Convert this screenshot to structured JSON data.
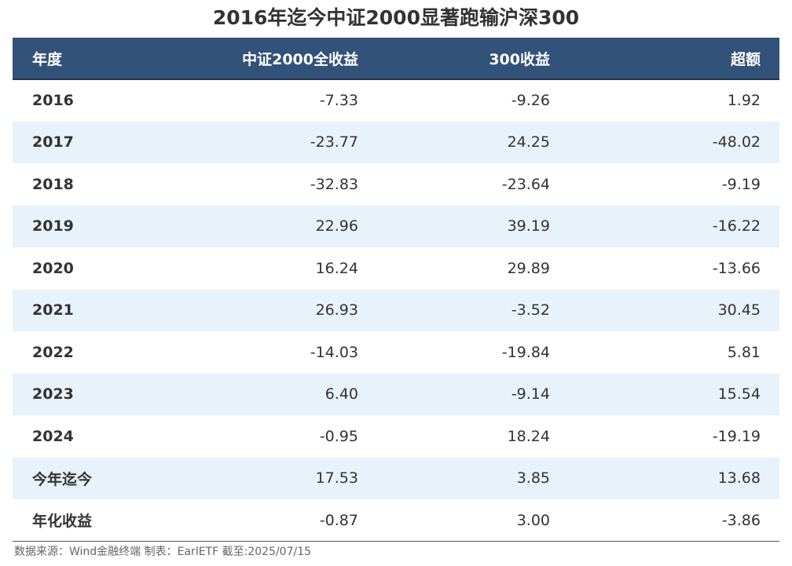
{
  "title": "2016年迄今中证2000显著跑输沪深300",
  "table": {
    "headers": [
      "年度",
      "中证2000全收益",
      "300收益",
      "超额"
    ],
    "rows": [
      [
        "2016",
        "-7.33",
        "-9.26",
        "1.92"
      ],
      [
        "2017",
        "-23.77",
        "24.25",
        "-48.02"
      ],
      [
        "2018",
        "-32.83",
        "-23.64",
        "-9.19"
      ],
      [
        "2019",
        "22.96",
        "39.19",
        "-16.22"
      ],
      [
        "2020",
        "16.24",
        "29.89",
        "-13.66"
      ],
      [
        "2021",
        "26.93",
        "-3.52",
        "30.45"
      ],
      [
        "2022",
        "-14.03",
        "-19.84",
        "5.81"
      ],
      [
        "2023",
        "6.40",
        "-9.14",
        "15.54"
      ],
      [
        "2024",
        "-0.95",
        "18.24",
        "-19.19"
      ],
      [
        "今年迄今",
        "17.53",
        "3.85",
        "13.68"
      ],
      [
        "年化收益",
        "-0.87",
        "3.00",
        "-3.86"
      ]
    ]
  },
  "footer": "数据来源：Wind金融终端 制表：EarlETF 截至:2025/07/15",
  "colors": {
    "header_bg": "#33527a",
    "header_text": "#ffffff",
    "stripe_bg": "#e8f2fb",
    "text": "#333333"
  }
}
